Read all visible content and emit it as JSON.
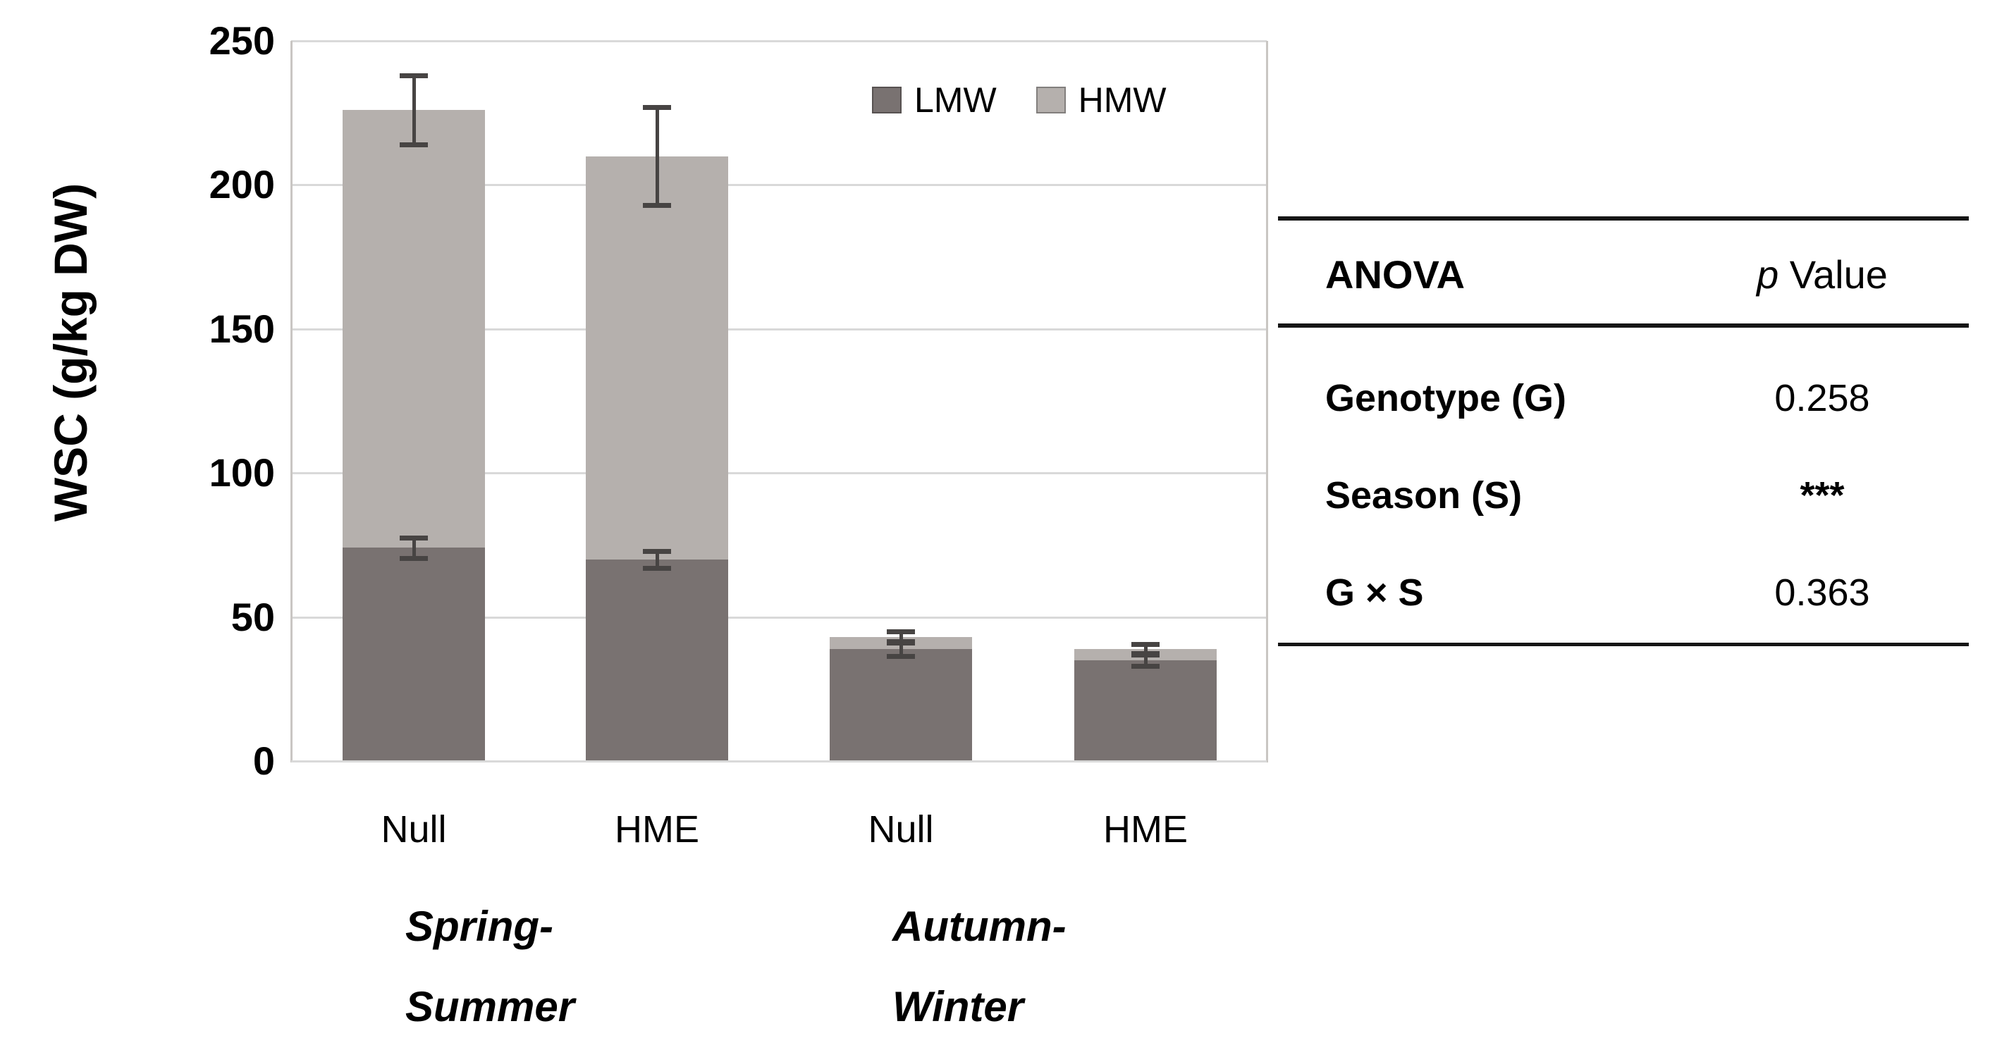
{
  "chart_data": {
    "type": "bar",
    "subtype": "stacked-vertical-with-error-bars",
    "title": "",
    "ylabel": "WSC (g/kg DW)",
    "xlabel": "",
    "ylim": [
      0,
      250
    ],
    "yticks": [
      0,
      50,
      100,
      150,
      200,
      250
    ],
    "grid": "horizontal",
    "legend_position": "top-right-inside",
    "categories": [
      "Null",
      "HME",
      "Null",
      "HME"
    ],
    "groups": [
      {
        "label_line1": "Spring-",
        "label_line2": "Summer",
        "categories_span": [
          0,
          1
        ]
      },
      {
        "label_line1": "Autumn-",
        "label_line2": "Winter",
        "categories_span": [
          2,
          3
        ]
      }
    ],
    "series": [
      {
        "name": "LMW",
        "color": "#797271",
        "values": [
          74,
          70,
          39,
          35
        ],
        "errors": [
          3.5,
          3,
          2.5,
          2
        ]
      },
      {
        "name": "HMW",
        "color": "#b5b0ad",
        "values": [
          152,
          140,
          4,
          4
        ]
      }
    ],
    "stack_totals": [
      226,
      210,
      43,
      39
    ],
    "stack_total_errors": [
      12,
      17,
      2,
      1.5
    ]
  },
  "anova_table": {
    "col1_header": "ANOVA",
    "col2_header_italic": "p",
    "col2_header_rest": " Value",
    "rows": [
      {
        "label": "Genotype (G)",
        "value": "0.258"
      },
      {
        "label": "Season (S)",
        "value": "***"
      },
      {
        "label": "G × S",
        "value": "0.363"
      }
    ]
  },
  "colors": {
    "lmw": "#797271",
    "hmw": "#b5b0ad",
    "error_bar": "#474443",
    "gridline": "#d9d9d9",
    "axis_line": "#c9c6c3",
    "text": "#000000",
    "table_line": "#161616",
    "background": "#ffffff"
  }
}
